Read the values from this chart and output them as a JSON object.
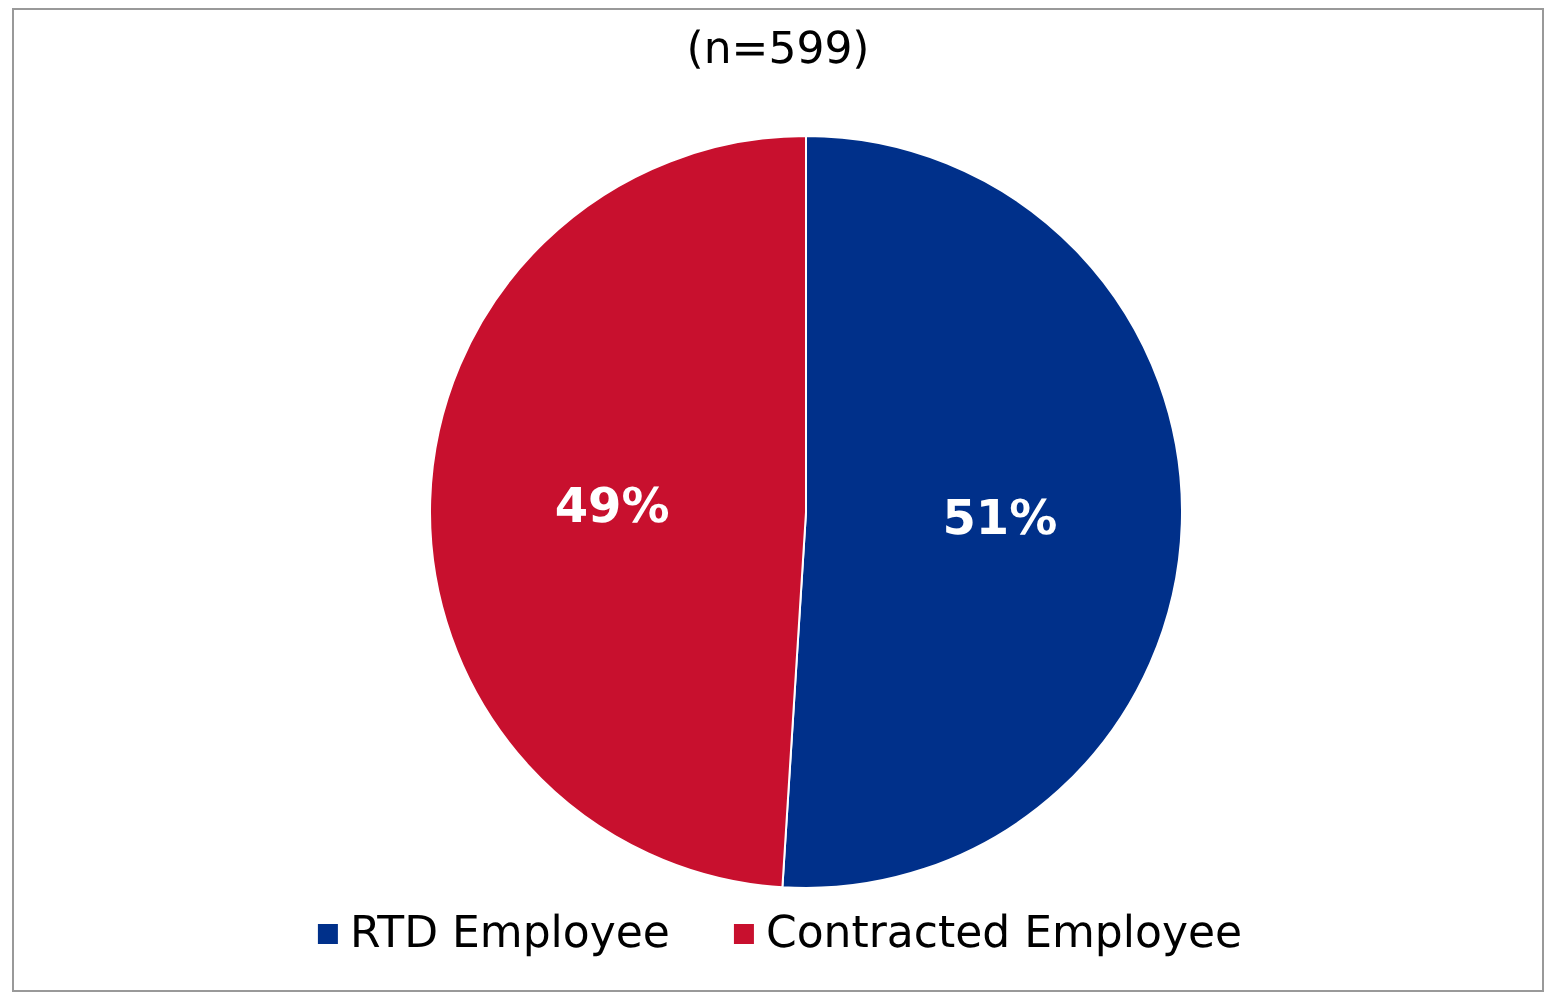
{
  "chart_data": {
    "type": "pie",
    "title": "(n=599)",
    "categories": [
      "RTD Employee",
      "Contracted Employee"
    ],
    "values": [
      51,
      49
    ],
    "colors": [
      "#00308a",
      "#c8102e"
    ],
    "value_labels": [
      "51%",
      "49%"
    ],
    "legend": "bottom"
  }
}
